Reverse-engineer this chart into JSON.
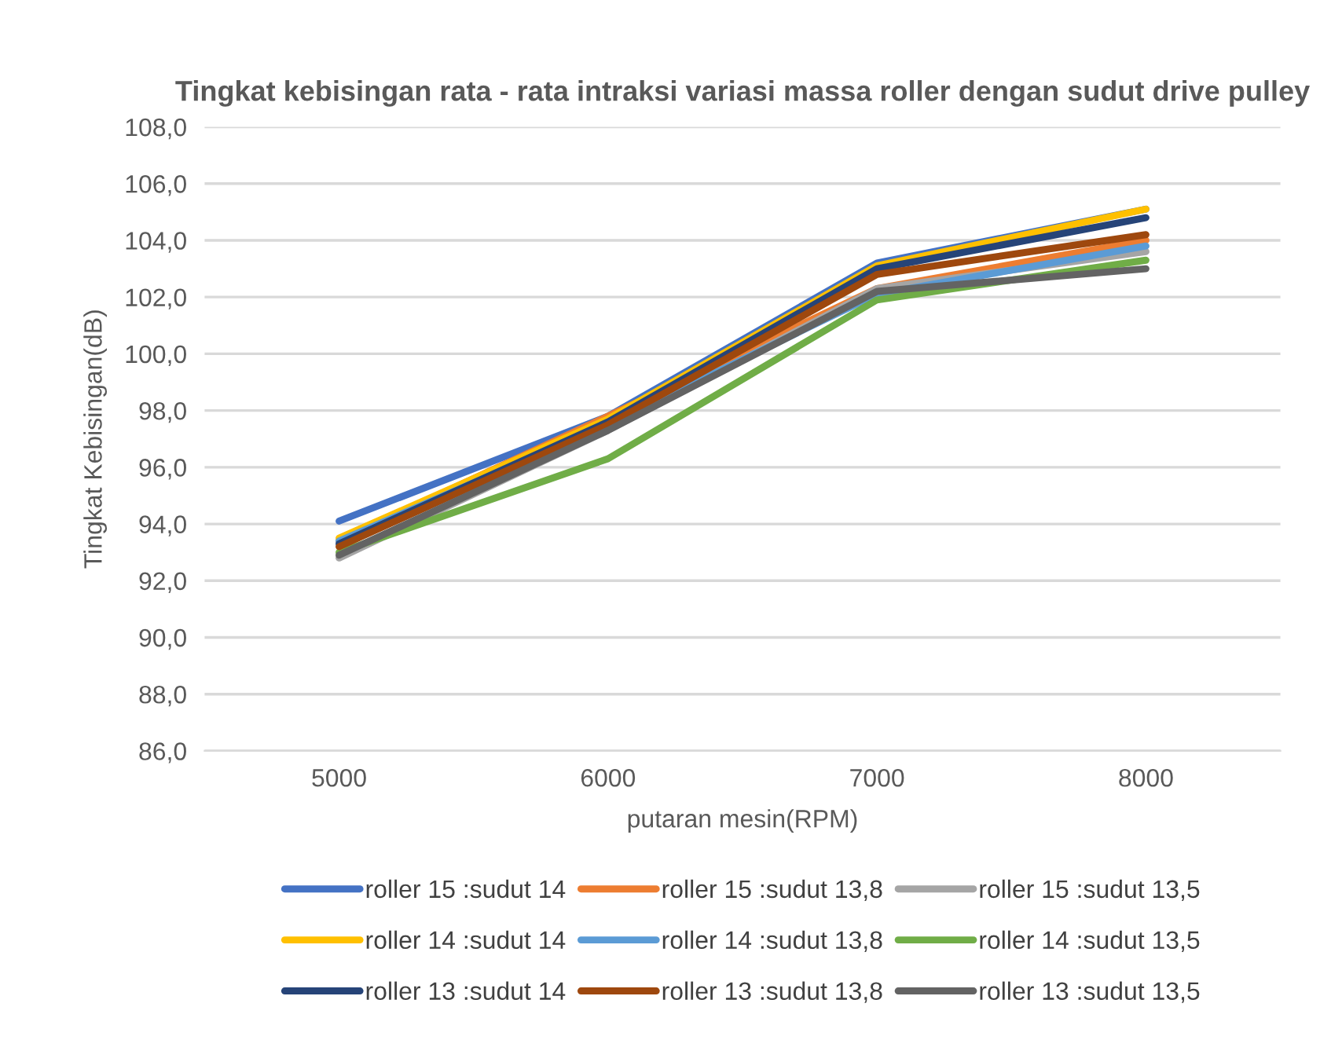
{
  "chart_data": {
    "type": "line",
    "title": "Tingkat kebisingan rata - rata intraksi variasi massa roller dengan sudut drive pulley",
    "xlabel": "putaran mesin(RPM)",
    "ylabel": "Tingkat Kebisingan(dB)",
    "categories": [
      "5000",
      "6000",
      "7000",
      "8000"
    ],
    "series": [
      {
        "name": "roller 15 :sudut 14",
        "color": "#4472c4",
        "values": [
          94.1,
          97.8,
          103.2,
          105.1
        ]
      },
      {
        "name": "roller 15 :sudut 13,8",
        "color": "#ed7d31",
        "values": [
          93.4,
          97.8,
          102.3,
          104.0
        ]
      },
      {
        "name": "roller 15 :sudut 13,5",
        "color": "#a5a5a5",
        "values": [
          92.8,
          97.3,
          102.3,
          103.6
        ]
      },
      {
        "name": "roller 14 :sudut 14",
        "color": "#ffc000",
        "values": [
          93.5,
          97.7,
          103.1,
          105.1
        ]
      },
      {
        "name": "roller 14 :sudut 13,8",
        "color": "#5b9bd5",
        "values": [
          93.4,
          97.5,
          102.1,
          103.8
        ]
      },
      {
        "name": "roller 14 :sudut 13,5",
        "color": "#70ad47",
        "values": [
          93.0,
          96.3,
          101.9,
          103.3
        ]
      },
      {
        "name": "roller 13 :sudut 14",
        "color": "#264478",
        "values": [
          93.3,
          97.6,
          103.0,
          104.8
        ]
      },
      {
        "name": "roller 13 :sudut 13,8",
        "color": "#9e480e",
        "values": [
          93.2,
          97.5,
          102.8,
          104.2
        ]
      },
      {
        "name": "roller 13 :sudut 13,5",
        "color": "#636363",
        "values": [
          92.9,
          97.3,
          102.2,
          103.0
        ]
      }
    ],
    "ylim": [
      86,
      108
    ],
    "yticks": [
      {
        "value": 86,
        "label": "86,0"
      },
      {
        "value": 88,
        "label": "88,0"
      },
      {
        "value": 90,
        "label": "90,0"
      },
      {
        "value": 92,
        "label": "92,0"
      },
      {
        "value": 94,
        "label": "94,0"
      },
      {
        "value": 96,
        "label": "96,0"
      },
      {
        "value": 98,
        "label": "98,0"
      },
      {
        "value": 100,
        "label": "100,0"
      },
      {
        "value": 102,
        "label": "102,0"
      },
      {
        "value": 104,
        "label": "104,0"
      },
      {
        "value": 106,
        "label": "106,0"
      },
      {
        "value": 108,
        "label": "108,0"
      }
    ],
    "grid": "y",
    "legend": "bottom",
    "marker": "none",
    "line_style": "solid"
  }
}
